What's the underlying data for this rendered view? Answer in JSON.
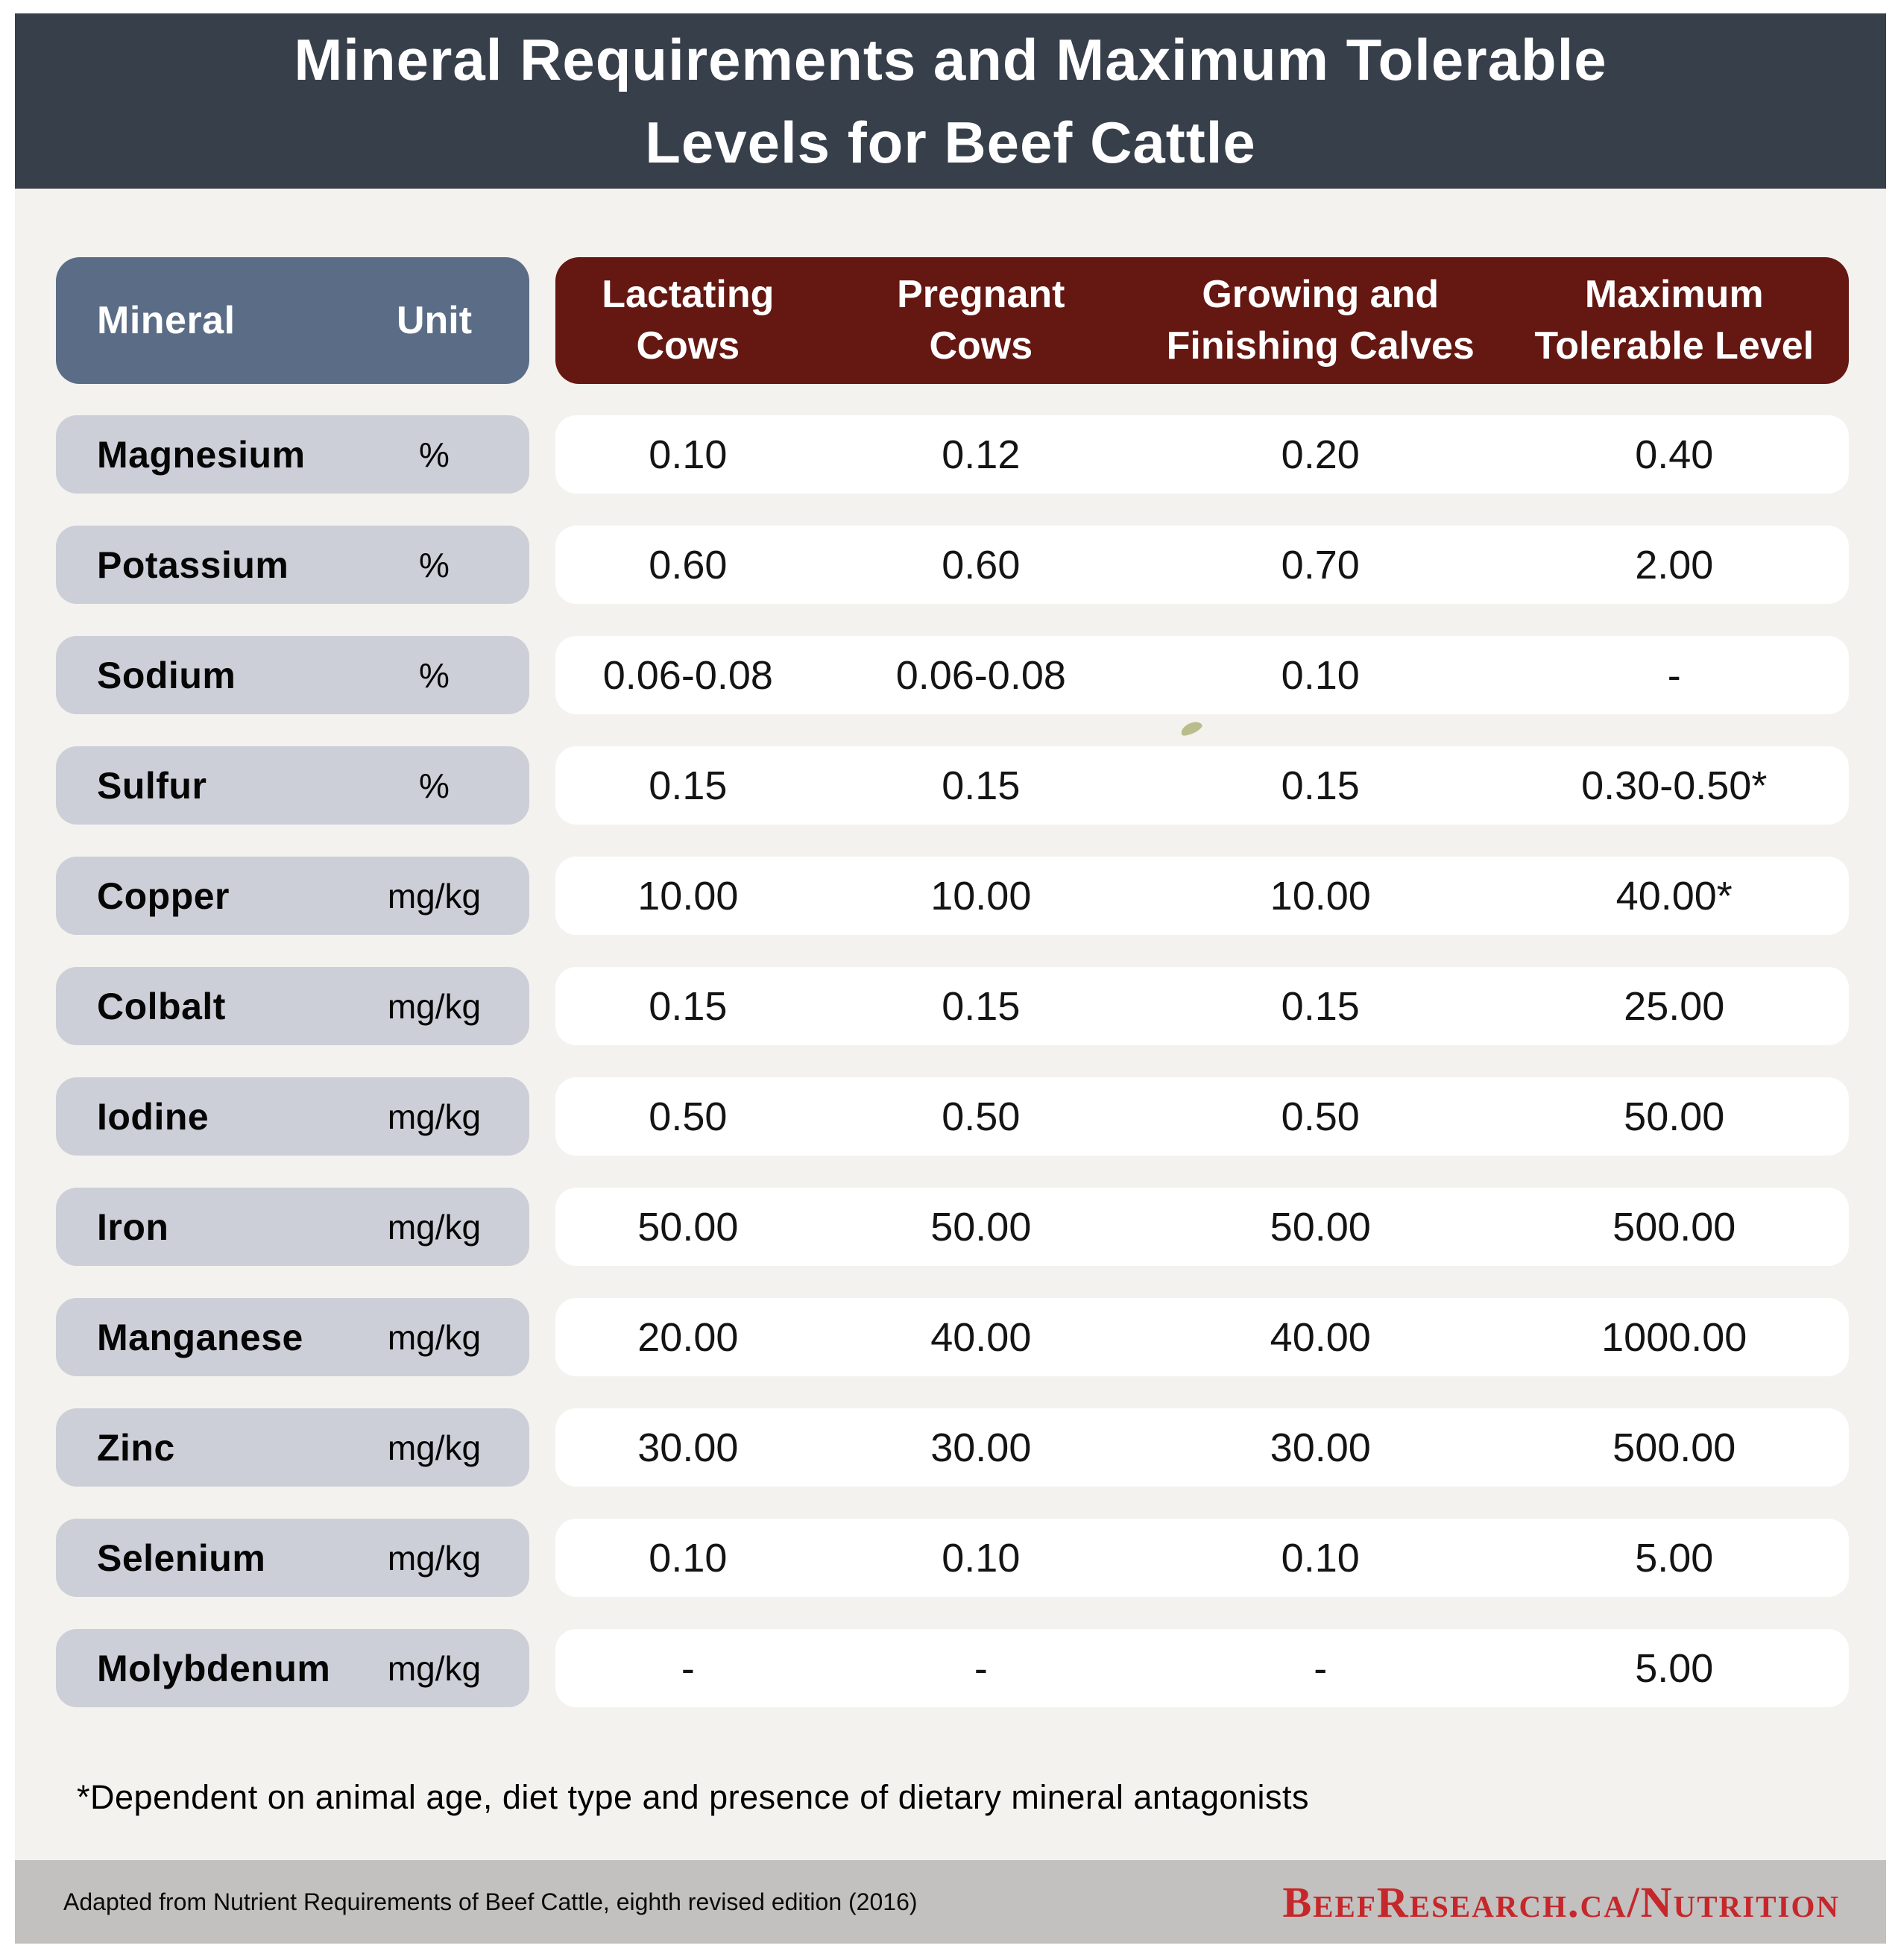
{
  "title": "Mineral Requirements and Maximum Tolerable\nLevels for Beef Cattle",
  "colors": {
    "title_bar_bg": "#373f4a",
    "mineral_header_bg": "#5b6c86",
    "column_header_bg": "#651711",
    "row_label_bg": "#cccfd7",
    "panel_bg": "#f3f2ee",
    "footer_bg": "#c2c1bf",
    "link_red": "#c5272b",
    "leaf_mark": "#b9bd8c"
  },
  "chart_data": {
    "type": "table",
    "title": "Mineral Requirements and Maximum Tolerable Levels for Beef Cattle",
    "header": {
      "mineral": "Mineral",
      "unit": "Unit",
      "columns": [
        "Lactating\nCows",
        "Pregnant\nCows",
        "Growing and\nFinishing Calves",
        "Maximum\nTolerable Level"
      ]
    },
    "rows": [
      {
        "mineral": "Magnesium",
        "unit": "%",
        "values": [
          "0.10",
          "0.12",
          "0.20",
          "0.40"
        ]
      },
      {
        "mineral": "Potassium",
        "unit": "%",
        "values": [
          "0.60",
          "0.60",
          "0.70",
          "2.00"
        ]
      },
      {
        "mineral": "Sodium",
        "unit": "%",
        "values": [
          "0.06-0.08",
          "0.06-0.08",
          "0.10",
          "-"
        ]
      },
      {
        "mineral": "Sulfur",
        "unit": "%",
        "values": [
          "0.15",
          "0.15",
          "0.15",
          "0.30-0.50*"
        ]
      },
      {
        "mineral": "Copper",
        "unit": "mg/kg",
        "values": [
          "10.00",
          "10.00",
          "10.00",
          "40.00*"
        ]
      },
      {
        "mineral": "Colbalt",
        "unit": "mg/kg",
        "values": [
          "0.15",
          "0.15",
          "0.15",
          "25.00"
        ]
      },
      {
        "mineral": "Iodine",
        "unit": "mg/kg",
        "values": [
          "0.50",
          "0.50",
          "0.50",
          "50.00"
        ]
      },
      {
        "mineral": "Iron",
        "unit": "mg/kg",
        "values": [
          "50.00",
          "50.00",
          "50.00",
          "500.00"
        ]
      },
      {
        "mineral": "Manganese",
        "unit": "mg/kg",
        "values": [
          "20.00",
          "40.00",
          "40.00",
          "1000.00"
        ]
      },
      {
        "mineral": "Zinc",
        "unit": "mg/kg",
        "values": [
          "30.00",
          "30.00",
          "30.00",
          "500.00"
        ]
      },
      {
        "mineral": "Selenium",
        "unit": "mg/kg",
        "values": [
          "0.10",
          "0.10",
          "0.10",
          "5.00"
        ]
      },
      {
        "mineral": "Molybdenum",
        "unit": "mg/kg",
        "values": [
          "-",
          "-",
          "-",
          "5.00"
        ]
      }
    ]
  },
  "footnote": "*Dependent on animal age, diet type and presence of dietary mineral antagonists",
  "footer": {
    "source": "Adapted from Nutrient Requirements of Beef Cattle, eighth revised edition (2016)",
    "website": "BeefResearch.ca/Nutrition"
  }
}
